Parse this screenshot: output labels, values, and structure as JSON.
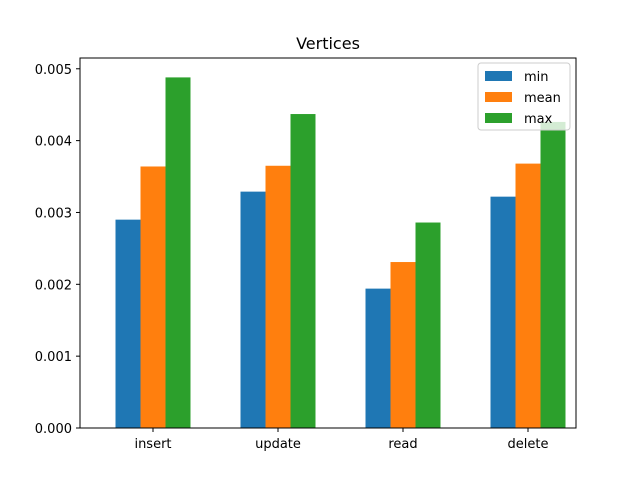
{
  "chart_data": {
    "type": "bar",
    "title": "Vertices",
    "xlabel": "",
    "ylabel": "",
    "categories": [
      "insert",
      "update",
      "read",
      "delete"
    ],
    "series": [
      {
        "name": "min",
        "color": "#1f77b4",
        "values": [
          0.0029,
          0.00329,
          0.00194,
          0.00322
        ]
      },
      {
        "name": "mean",
        "color": "#ff7f0e",
        "values": [
          0.00364,
          0.00365,
          0.00231,
          0.00368
        ]
      },
      {
        "name": "max",
        "color": "#2ca02c",
        "values": [
          0.00488,
          0.00437,
          0.00286,
          0.00426
        ]
      }
    ],
    "ylim": [
      0,
      0.00515
    ],
    "yticks": [
      "0.000",
      "0.001",
      "0.002",
      "0.003",
      "0.004",
      "0.005"
    ],
    "grid": false,
    "legend_position": "top-right"
  }
}
